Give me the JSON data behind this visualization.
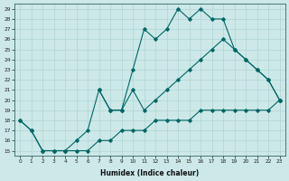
{
  "xlabel": "Humidex (Indice chaleur)",
  "ylabel": "",
  "bg_color": "#cce8e8",
  "line_color": "#006666",
  "grid_color": "#b0d4d4",
  "ylim": [
    15,
    29
  ],
  "xlim": [
    -0.5,
    23.5
  ],
  "yticks": [
    15,
    16,
    17,
    18,
    19,
    20,
    21,
    22,
    23,
    24,
    25,
    26,
    27,
    28,
    29
  ],
  "xticks": [
    0,
    1,
    2,
    3,
    4,
    5,
    6,
    7,
    8,
    9,
    10,
    11,
    12,
    13,
    14,
    15,
    16,
    17,
    18,
    19,
    20,
    21,
    22,
    23
  ],
  "series": [
    {
      "x": [
        0,
        1,
        2,
        3,
        4,
        5,
        6,
        7,
        8,
        9,
        10,
        11,
        12,
        13,
        14,
        15,
        16,
        17,
        18,
        19,
        20,
        21,
        22,
        23
      ],
      "y": [
        18,
        17,
        15,
        15,
        15,
        15,
        15,
        16,
        16,
        17,
        17,
        17,
        18,
        18,
        18,
        18,
        19,
        19,
        19,
        19,
        19,
        19,
        19,
        20
      ]
    },
    {
      "x": [
        0,
        1,
        2,
        3,
        4,
        5,
        6,
        7,
        8,
        9,
        10,
        11,
        12,
        13,
        14,
        15,
        16,
        17,
        18,
        19,
        20,
        21,
        22,
        23
      ],
      "y": [
        18,
        17,
        15,
        15,
        15,
        16,
        17,
        21,
        19,
        19,
        21,
        19,
        20,
        21,
        22,
        23,
        24,
        25,
        26,
        25,
        24,
        23,
        22,
        20
      ]
    },
    {
      "x": [
        7,
        8,
        9,
        10,
        11,
        12,
        13,
        14,
        15,
        16,
        17,
        18,
        19,
        20,
        21,
        22,
        23
      ],
      "y": [
        21,
        19,
        19,
        23,
        27,
        26,
        27,
        29,
        28,
        29,
        28,
        28,
        25,
        24,
        23,
        22,
        20
      ]
    }
  ]
}
